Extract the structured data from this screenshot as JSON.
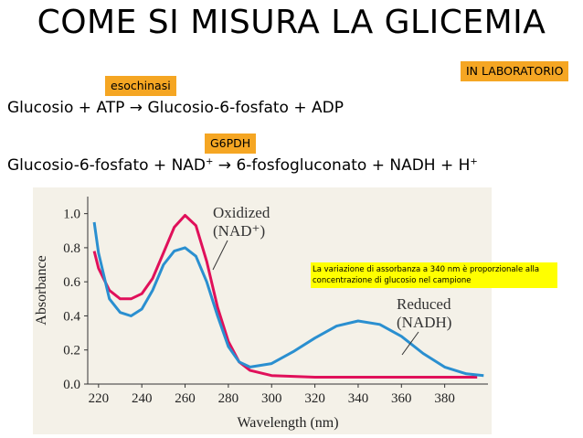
{
  "slide": {
    "title": "COME SI MISURA LA GLICEMIA",
    "lab_tag": "IN LABORATORIO",
    "enzyme1": "esochinasi",
    "equation1": "Glucosio + ATP  → Glucosio-6-fosfato + ADP",
    "enzyme2": "G6PDH",
    "equation2_part1": "Glucosio-6-fosfato + NAD",
    "equation2_sup1": "+",
    "equation2_part2": "  → 6-fosfogluconato + NADH + H",
    "equation2_sup2": "+",
    "note": "La variazione di assorbanza a 340 nm è proporzionale alla concentrazione di glucosio nel campione"
  },
  "chart_data": {
    "type": "line",
    "xlabel": "Wavelength (nm)",
    "ylabel": "Absorbance",
    "xlim": [
      215,
      400
    ],
    "ylim": [
      0,
      1.1
    ],
    "xticks": [
      "220",
      "240",
      "260",
      "280",
      "300",
      "320",
      "340",
      "360",
      "380"
    ],
    "yticks": [
      "0.0",
      "0.2",
      "0.4",
      "0.6",
      "0.8",
      "1.0"
    ],
    "grid": false,
    "series": [
      {
        "name": "Oxidized (NAD⁺)",
        "label_line1": "Oxidized",
        "label_line2": "(NAD⁺)",
        "color": "#e0105a",
        "x": [
          218,
          220,
          225,
          230,
          235,
          240,
          245,
          250,
          255,
          260,
          265,
          270,
          275,
          280,
          285,
          290,
          300,
          310,
          320,
          340,
          360,
          380,
          395
        ],
        "y": [
          0.78,
          0.68,
          0.55,
          0.5,
          0.5,
          0.53,
          0.62,
          0.77,
          0.92,
          0.99,
          0.93,
          0.72,
          0.45,
          0.25,
          0.13,
          0.08,
          0.05,
          0.045,
          0.04,
          0.04,
          0.04,
          0.04,
          0.04
        ]
      },
      {
        "name": "Reduced (NADH)",
        "label_line1": "Reduced",
        "label_line2": "(NADH)",
        "color": "#2a8fd0",
        "x": [
          218,
          220,
          225,
          230,
          235,
          240,
          245,
          250,
          255,
          260,
          265,
          270,
          275,
          280,
          285,
          290,
          300,
          310,
          320,
          330,
          340,
          350,
          360,
          370,
          380,
          390,
          398
        ],
        "y": [
          0.95,
          0.77,
          0.5,
          0.42,
          0.4,
          0.44,
          0.55,
          0.7,
          0.78,
          0.8,
          0.75,
          0.6,
          0.4,
          0.22,
          0.13,
          0.1,
          0.12,
          0.19,
          0.27,
          0.34,
          0.37,
          0.35,
          0.28,
          0.18,
          0.1,
          0.06,
          0.05
        ]
      }
    ]
  }
}
